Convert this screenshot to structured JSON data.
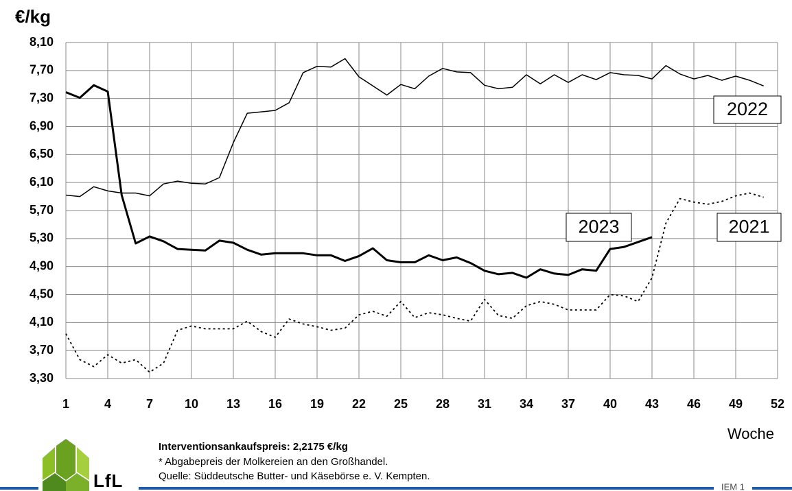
{
  "chart_data": {
    "type": "line",
    "ylabel": "€/kg",
    "xlabel": "Woche",
    "x": [
      1,
      2,
      3,
      4,
      5,
      6,
      7,
      8,
      9,
      10,
      11,
      12,
      13,
      14,
      15,
      16,
      17,
      18,
      19,
      20,
      21,
      22,
      23,
      24,
      25,
      26,
      27,
      28,
      29,
      30,
      31,
      32,
      33,
      34,
      35,
      36,
      37,
      38,
      39,
      40,
      41,
      42,
      43,
      44,
      45,
      46,
      47,
      48,
      49,
      50,
      51
    ],
    "xlim": [
      1,
      52
    ],
    "xticks": [
      1,
      4,
      7,
      10,
      13,
      16,
      19,
      22,
      25,
      28,
      31,
      34,
      37,
      40,
      43,
      46,
      49,
      52
    ],
    "ylim": [
      3.3,
      8.1
    ],
    "yticks": [
      {
        "value": 3.3,
        "label": "3,30"
      },
      {
        "value": 3.7,
        "label": "3,70"
      },
      {
        "value": 4.1,
        "label": "4,10"
      },
      {
        "value": 4.5,
        "label": "4,50"
      },
      {
        "value": 4.9,
        "label": "4,90"
      },
      {
        "value": 5.3,
        "label": "5,30"
      },
      {
        "value": 5.7,
        "label": "5,70"
      },
      {
        "value": 6.1,
        "label": "6,10"
      },
      {
        "value": 6.5,
        "label": "6,50"
      },
      {
        "value": 6.9,
        "label": "6,90"
      },
      {
        "value": 7.3,
        "label": "7,30"
      },
      {
        "value": 7.7,
        "label": "7,70"
      },
      {
        "value": 8.1,
        "label": "8,10"
      }
    ],
    "grid": true,
    "series": [
      {
        "name": "2022",
        "color": "#000000",
        "style": "solid",
        "values": [
          5.92,
          5.9,
          6.04,
          5.98,
          5.95,
          5.95,
          5.91,
          6.08,
          6.12,
          6.09,
          6.08,
          6.17,
          6.67,
          7.09,
          7.11,
          7.13,
          7.24,
          7.67,
          7.76,
          7.75,
          7.87,
          7.61,
          7.48,
          7.35,
          7.5,
          7.44,
          7.62,
          7.73,
          7.68,
          7.67,
          7.49,
          7.44,
          7.46,
          7.64,
          7.51,
          7.64,
          7.53,
          7.64,
          7.57,
          7.67,
          7.64,
          7.63,
          7.58,
          7.77,
          7.65,
          7.58,
          7.63,
          7.56,
          7.62,
          7.56,
          7.48
        ]
      },
      {
        "name": "2023",
        "color": "#000000",
        "style": "thick",
        "values": [
          7.39,
          7.31,
          7.49,
          7.4,
          5.92,
          5.23,
          5.33,
          5.26,
          5.15,
          5.14,
          5.13,
          5.27,
          5.24,
          5.14,
          5.07,
          5.09,
          5.09,
          5.09,
          5.06,
          5.06,
          4.98,
          5.05,
          5.16,
          4.99,
          4.96,
          4.96,
          5.06,
          4.99,
          5.03,
          4.95,
          4.84,
          4.79,
          4.81,
          4.74,
          4.86,
          4.8,
          4.78,
          4.86,
          4.84,
          5.15,
          5.18,
          5.25,
          5.32,
          null,
          null,
          null,
          null,
          null,
          null,
          null,
          null
        ]
      },
      {
        "name": "2021",
        "color": "#000000",
        "style": "dotted",
        "values": [
          3.94,
          3.57,
          3.47,
          3.64,
          3.52,
          3.57,
          3.39,
          3.52,
          3.99,
          4.05,
          4.01,
          4.01,
          4.01,
          4.12,
          3.97,
          3.89,
          4.15,
          4.08,
          4.04,
          3.99,
          4.02,
          4.21,
          4.26,
          4.19,
          4.4,
          4.17,
          4.24,
          4.21,
          4.16,
          4.12,
          4.43,
          4.2,
          4.16,
          4.34,
          4.4,
          4.36,
          4.28,
          4.28,
          4.28,
          4.5,
          4.48,
          4.4,
          4.74,
          5.52,
          5.87,
          5.82,
          5.79,
          5.83,
          5.91,
          5.95,
          5.89
        ]
      }
    ]
  },
  "notes": {
    "intervention": "Interventionsankaufspreis: 2,2175 €/kg",
    "footnote": "* Abgabepreis der Molkereien an den Großhandel.",
    "source": "Quelle: Süddeutsche Butter- und Käsebörse e. V. Kempten."
  },
  "logo": "LfL",
  "page": "IEM 1"
}
